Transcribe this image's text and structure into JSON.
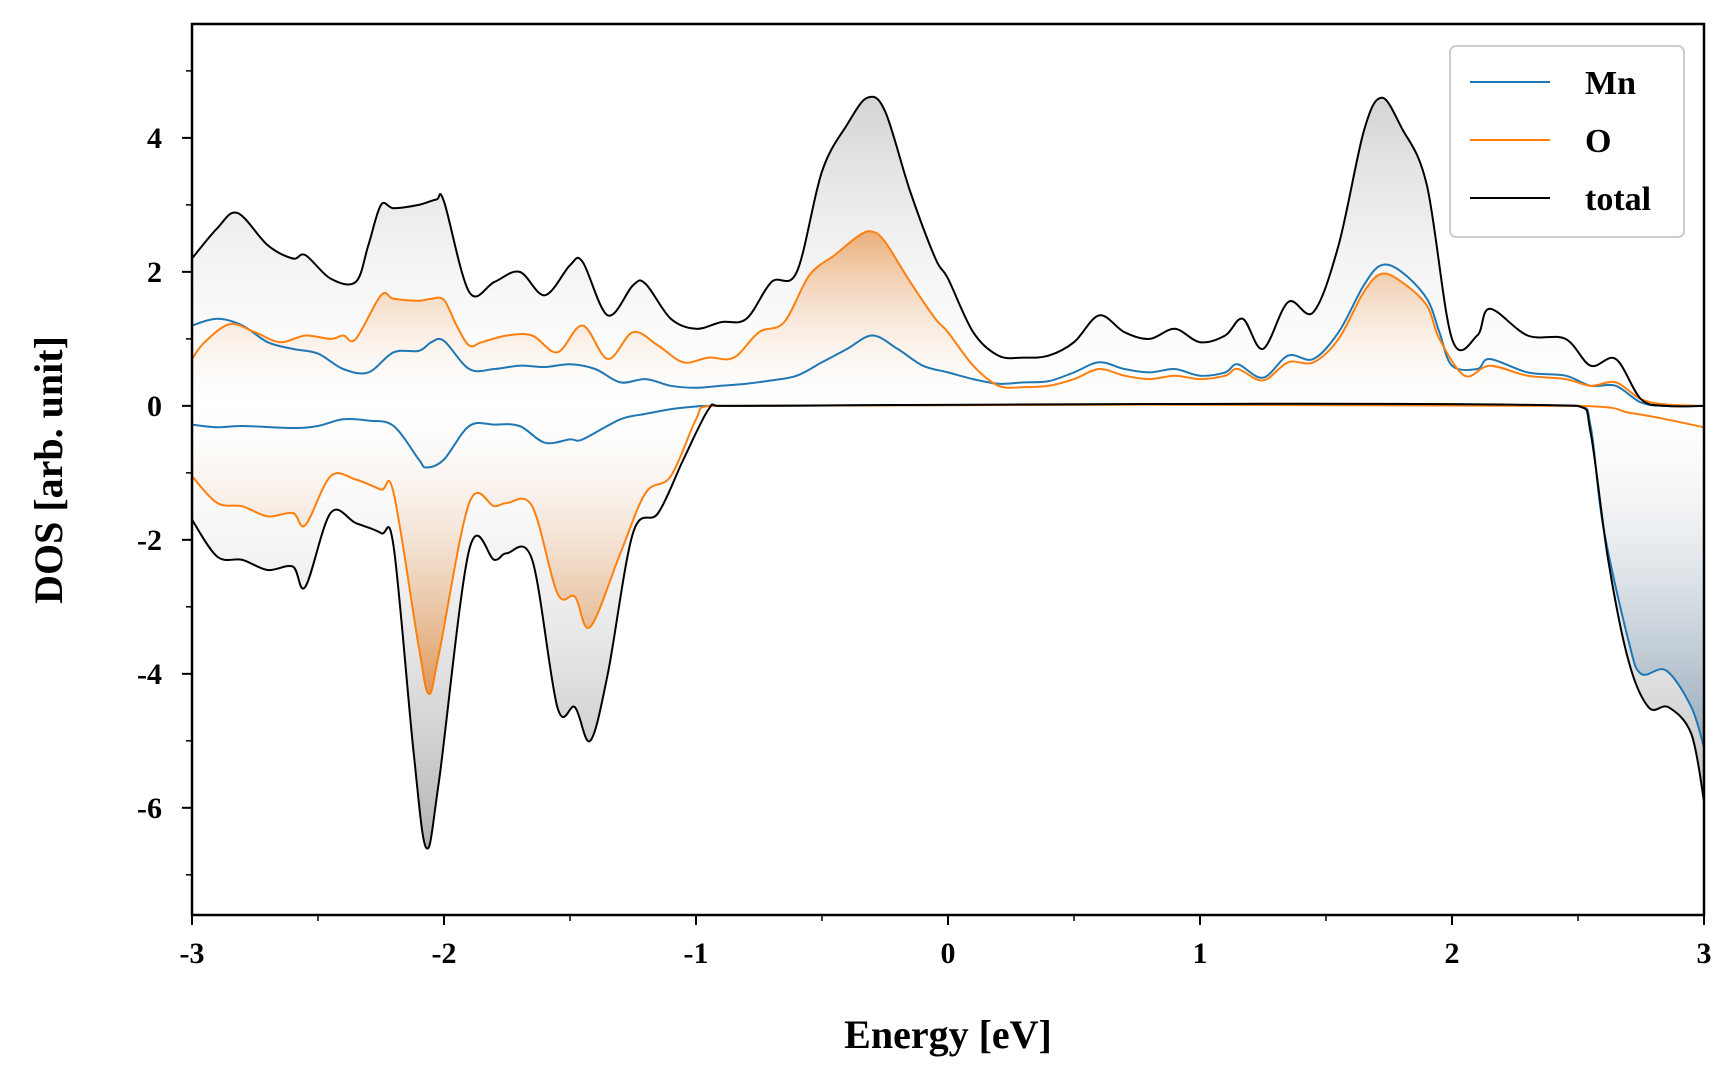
{
  "chart_data": {
    "type": "line",
    "xlabel": "Energy [eV]",
    "ylabel": "DOS [arb. unit]",
    "xlim": [
      -3,
      3
    ],
    "ylim": [
      -7.6,
      5.7
    ],
    "xticks": [
      -3,
      -2,
      -1,
      0,
      1,
      2,
      3
    ],
    "xtick_labels": [
      "-3",
      "-2",
      "-1",
      "0",
      "1",
      "2",
      "3"
    ],
    "yticks": [
      -6,
      -4,
      -2,
      0,
      2,
      4
    ],
    "ytick_labels": [
      "-6",
      "-4",
      "-2",
      "0",
      "2",
      "4"
    ],
    "grid": false,
    "legend_position": "top-right",
    "series": [
      {
        "name": "Mn",
        "color": "#1f77b4",
        "spin_up": [
          [
            -3.0,
            1.2
          ],
          [
            -2.9,
            1.3
          ],
          [
            -2.8,
            1.2
          ],
          [
            -2.7,
            0.95
          ],
          [
            -2.6,
            0.85
          ],
          [
            -2.5,
            0.78
          ],
          [
            -2.4,
            0.55
          ],
          [
            -2.3,
            0.5
          ],
          [
            -2.2,
            0.8
          ],
          [
            -2.1,
            0.82
          ],
          [
            -2.05,
            0.95
          ],
          [
            -2.0,
            0.97
          ],
          [
            -1.9,
            0.55
          ],
          [
            -1.8,
            0.55
          ],
          [
            -1.7,
            0.6
          ],
          [
            -1.6,
            0.58
          ],
          [
            -1.5,
            0.62
          ],
          [
            -1.4,
            0.55
          ],
          [
            -1.3,
            0.35
          ],
          [
            -1.2,
            0.4
          ],
          [
            -1.1,
            0.3
          ],
          [
            -1.0,
            0.27
          ],
          [
            -0.9,
            0.3
          ],
          [
            -0.8,
            0.33
          ],
          [
            -0.7,
            0.38
          ],
          [
            -0.6,
            0.45
          ],
          [
            -0.5,
            0.65
          ],
          [
            -0.4,
            0.85
          ],
          [
            -0.3,
            1.05
          ],
          [
            -0.2,
            0.85
          ],
          [
            -0.1,
            0.6
          ],
          [
            0.0,
            0.5
          ],
          [
            0.1,
            0.4
          ],
          [
            0.2,
            0.33
          ],
          [
            0.3,
            0.35
          ],
          [
            0.4,
            0.37
          ],
          [
            0.5,
            0.5
          ],
          [
            0.6,
            0.65
          ],
          [
            0.7,
            0.55
          ],
          [
            0.8,
            0.5
          ],
          [
            0.9,
            0.55
          ],
          [
            1.0,
            0.45
          ],
          [
            1.1,
            0.5
          ],
          [
            1.15,
            0.62
          ],
          [
            1.25,
            0.42
          ],
          [
            1.35,
            0.75
          ],
          [
            1.45,
            0.7
          ],
          [
            1.55,
            1.1
          ],
          [
            1.65,
            1.8
          ],
          [
            1.72,
            2.1
          ],
          [
            1.8,
            2.0
          ],
          [
            1.9,
            1.6
          ],
          [
            1.95,
            1.1
          ],
          [
            2.0,
            0.6
          ],
          [
            2.1,
            0.55
          ],
          [
            2.15,
            0.7
          ],
          [
            2.3,
            0.5
          ],
          [
            2.45,
            0.45
          ],
          [
            2.55,
            0.3
          ],
          [
            2.65,
            0.3
          ],
          [
            2.75,
            0.05
          ],
          [
            2.85,
            0.0
          ],
          [
            3.0,
            0.0
          ]
        ],
        "spin_down": [
          [
            -3.0,
            -0.28
          ],
          [
            -2.9,
            -0.32
          ],
          [
            -2.8,
            -0.3
          ],
          [
            -2.6,
            -0.33
          ],
          [
            -2.5,
            -0.3
          ],
          [
            -2.4,
            -0.2
          ],
          [
            -2.3,
            -0.22
          ],
          [
            -2.2,
            -0.3
          ],
          [
            -2.1,
            -0.8
          ],
          [
            -2.07,
            -0.92
          ],
          [
            -2.0,
            -0.8
          ],
          [
            -1.9,
            -0.3
          ],
          [
            -1.8,
            -0.28
          ],
          [
            -1.7,
            -0.3
          ],
          [
            -1.6,
            -0.55
          ],
          [
            -1.5,
            -0.5
          ],
          [
            -1.45,
            -0.5
          ],
          [
            -1.3,
            -0.2
          ],
          [
            -1.2,
            -0.12
          ],
          [
            -1.1,
            -0.05
          ],
          [
            -1.0,
            -0.01
          ],
          [
            -0.95,
            0.0
          ],
          [
            2.5,
            0.0
          ],
          [
            2.55,
            -0.3
          ],
          [
            2.6,
            -1.8
          ],
          [
            2.7,
            -3.5
          ],
          [
            2.75,
            -4.0
          ],
          [
            2.85,
            -3.95
          ],
          [
            2.95,
            -4.5
          ],
          [
            3.0,
            -5.1
          ]
        ]
      },
      {
        "name": "O",
        "color": "#ff7f0e",
        "spin_up": [
          [
            -3.0,
            0.7
          ],
          [
            -2.95,
            0.95
          ],
          [
            -2.85,
            1.22
          ],
          [
            -2.75,
            1.1
          ],
          [
            -2.65,
            0.95
          ],
          [
            -2.55,
            1.05
          ],
          [
            -2.45,
            1.0
          ],
          [
            -2.4,
            1.05
          ],
          [
            -2.35,
            1.0
          ],
          [
            -2.25,
            1.65
          ],
          [
            -2.2,
            1.6
          ],
          [
            -2.1,
            1.57
          ],
          [
            -2.05,
            1.6
          ],
          [
            -2.0,
            1.58
          ],
          [
            -1.95,
            1.2
          ],
          [
            -1.9,
            0.9
          ],
          [
            -1.85,
            0.95
          ],
          [
            -1.75,
            1.05
          ],
          [
            -1.65,
            1.05
          ],
          [
            -1.55,
            0.8
          ],
          [
            -1.45,
            1.2
          ],
          [
            -1.35,
            0.7
          ],
          [
            -1.25,
            1.1
          ],
          [
            -1.15,
            0.9
          ],
          [
            -1.05,
            0.65
          ],
          [
            -0.95,
            0.72
          ],
          [
            -0.85,
            0.72
          ],
          [
            -0.75,
            1.1
          ],
          [
            -0.65,
            1.25
          ],
          [
            -0.55,
            1.95
          ],
          [
            -0.45,
            2.25
          ],
          [
            -0.35,
            2.55
          ],
          [
            -0.3,
            2.6
          ],
          [
            -0.25,
            2.45
          ],
          [
            -0.15,
            1.85
          ],
          [
            -0.05,
            1.3
          ],
          [
            0.0,
            1.1
          ],
          [
            0.1,
            0.6
          ],
          [
            0.2,
            0.3
          ],
          [
            0.3,
            0.28
          ],
          [
            0.4,
            0.3
          ],
          [
            0.5,
            0.4
          ],
          [
            0.6,
            0.55
          ],
          [
            0.7,
            0.45
          ],
          [
            0.8,
            0.4
          ],
          [
            0.9,
            0.45
          ],
          [
            1.0,
            0.4
          ],
          [
            1.1,
            0.45
          ],
          [
            1.15,
            0.55
          ],
          [
            1.25,
            0.38
          ],
          [
            1.35,
            0.65
          ],
          [
            1.45,
            0.65
          ],
          [
            1.55,
            1.0
          ],
          [
            1.65,
            1.7
          ],
          [
            1.72,
            1.97
          ],
          [
            1.8,
            1.85
          ],
          [
            1.9,
            1.5
          ],
          [
            1.95,
            1.0
          ],
          [
            2.05,
            0.45
          ],
          [
            2.15,
            0.6
          ],
          [
            2.3,
            0.45
          ],
          [
            2.45,
            0.4
          ],
          [
            2.55,
            0.3
          ],
          [
            2.65,
            0.35
          ],
          [
            2.75,
            0.1
          ],
          [
            2.85,
            0.02
          ],
          [
            3.0,
            0.0
          ]
        ],
        "spin_down": [
          [
            -3.0,
            -1.05
          ],
          [
            -2.9,
            -1.45
          ],
          [
            -2.8,
            -1.5
          ],
          [
            -2.7,
            -1.65
          ],
          [
            -2.6,
            -1.6
          ],
          [
            -2.55,
            -1.78
          ],
          [
            -2.45,
            -1.05
          ],
          [
            -2.35,
            -1.1
          ],
          [
            -2.25,
            -1.25
          ],
          [
            -2.2,
            -1.3
          ],
          [
            -2.1,
            -3.6
          ],
          [
            -2.06,
            -4.3
          ],
          [
            -2.02,
            -3.7
          ],
          [
            -1.9,
            -1.45
          ],
          [
            -1.8,
            -1.5
          ],
          [
            -1.75,
            -1.45
          ],
          [
            -1.65,
            -1.5
          ],
          [
            -1.55,
            -2.8
          ],
          [
            -1.48,
            -2.85
          ],
          [
            -1.42,
            -3.3
          ],
          [
            -1.3,
            -2.2
          ],
          [
            -1.2,
            -1.3
          ],
          [
            -1.1,
            -1.05
          ],
          [
            -1.0,
            -0.2
          ],
          [
            -0.95,
            0.0
          ],
          [
            2.5,
            0.0
          ],
          [
            2.7,
            -0.1
          ],
          [
            2.85,
            -0.2
          ],
          [
            3.0,
            -0.32
          ]
        ]
      },
      {
        "name": "total",
        "color": "#000000",
        "spin_up": [
          [
            -3.0,
            2.2
          ],
          [
            -2.9,
            2.65
          ],
          [
            -2.82,
            2.88
          ],
          [
            -2.7,
            2.4
          ],
          [
            -2.6,
            2.2
          ],
          [
            -2.55,
            2.25
          ],
          [
            -2.45,
            1.9
          ],
          [
            -2.35,
            1.85
          ],
          [
            -2.3,
            2.4
          ],
          [
            -2.25,
            3.0
          ],
          [
            -2.2,
            2.95
          ],
          [
            -2.1,
            3.0
          ],
          [
            -2.03,
            3.08
          ],
          [
            -2.0,
            3.05
          ],
          [
            -1.9,
            1.7
          ],
          [
            -1.8,
            1.85
          ],
          [
            -1.7,
            2.0
          ],
          [
            -1.6,
            1.65
          ],
          [
            -1.5,
            2.1
          ],
          [
            -1.45,
            2.15
          ],
          [
            -1.35,
            1.35
          ],
          [
            -1.25,
            1.8
          ],
          [
            -1.2,
            1.82
          ],
          [
            -1.1,
            1.3
          ],
          [
            -1.0,
            1.15
          ],
          [
            -0.9,
            1.25
          ],
          [
            -0.8,
            1.3
          ],
          [
            -0.7,
            1.85
          ],
          [
            -0.6,
            2.0
          ],
          [
            -0.5,
            3.5
          ],
          [
            -0.4,
            4.2
          ],
          [
            -0.32,
            4.6
          ],
          [
            -0.25,
            4.4
          ],
          [
            -0.15,
            3.2
          ],
          [
            -0.05,
            2.2
          ],
          [
            0.0,
            1.9
          ],
          [
            0.1,
            1.1
          ],
          [
            0.2,
            0.75
          ],
          [
            0.3,
            0.72
          ],
          [
            0.4,
            0.75
          ],
          [
            0.5,
            0.95
          ],
          [
            0.6,
            1.35
          ],
          [
            0.7,
            1.1
          ],
          [
            0.8,
            1.0
          ],
          [
            0.9,
            1.15
          ],
          [
            1.0,
            0.95
          ],
          [
            1.1,
            1.05
          ],
          [
            1.17,
            1.3
          ],
          [
            1.25,
            0.85
          ],
          [
            1.35,
            1.55
          ],
          [
            1.45,
            1.4
          ],
          [
            1.55,
            2.4
          ],
          [
            1.65,
            4.1
          ],
          [
            1.72,
            4.6
          ],
          [
            1.8,
            4.15
          ],
          [
            1.9,
            3.3
          ],
          [
            2.0,
            1.0
          ],
          [
            2.1,
            1.05
          ],
          [
            2.15,
            1.45
          ],
          [
            2.3,
            1.05
          ],
          [
            2.45,
            1.0
          ],
          [
            2.55,
            0.6
          ],
          [
            2.65,
            0.7
          ],
          [
            2.75,
            0.1
          ],
          [
            2.85,
            0.0
          ],
          [
            3.0,
            0.0
          ]
        ],
        "spin_down": [
          [
            -3.0,
            -1.7
          ],
          [
            -2.9,
            -2.25
          ],
          [
            -2.8,
            -2.3
          ],
          [
            -2.7,
            -2.45
          ],
          [
            -2.6,
            -2.4
          ],
          [
            -2.55,
            -2.7
          ],
          [
            -2.45,
            -1.6
          ],
          [
            -2.35,
            -1.75
          ],
          [
            -2.25,
            -1.9
          ],
          [
            -2.2,
            -2.1
          ],
          [
            -2.12,
            -5.2
          ],
          [
            -2.07,
            -6.6
          ],
          [
            -2.02,
            -5.6
          ],
          [
            -1.9,
            -2.15
          ],
          [
            -1.8,
            -2.3
          ],
          [
            -1.75,
            -2.2
          ],
          [
            -1.65,
            -2.3
          ],
          [
            -1.55,
            -4.5
          ],
          [
            -1.48,
            -4.5
          ],
          [
            -1.42,
            -5.0
          ],
          [
            -1.35,
            -4.0
          ],
          [
            -1.25,
            -1.9
          ],
          [
            -1.15,
            -1.6
          ],
          [
            -1.05,
            -0.8
          ],
          [
            -0.95,
            -0.05
          ],
          [
            -0.9,
            0.0
          ],
          [
            2.5,
            0.0
          ],
          [
            2.55,
            -0.4
          ],
          [
            2.62,
            -2.3
          ],
          [
            2.7,
            -3.8
          ],
          [
            2.78,
            -4.5
          ],
          [
            2.86,
            -4.5
          ],
          [
            2.95,
            -4.9
          ],
          [
            3.0,
            -5.9
          ]
        ]
      }
    ]
  }
}
